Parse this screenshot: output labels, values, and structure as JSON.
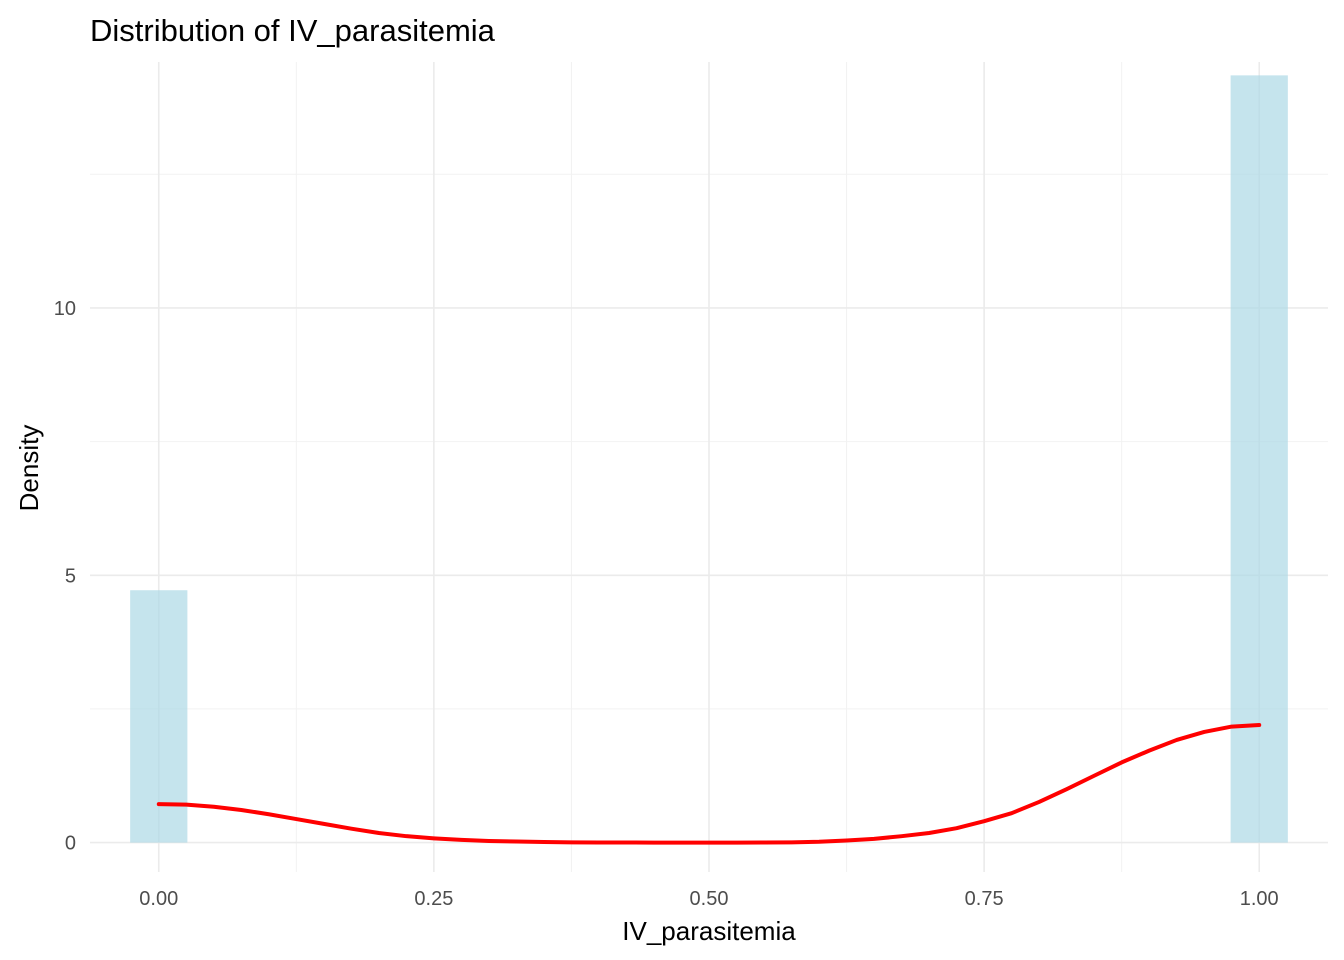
{
  "chart_data": {
    "type": "bar",
    "title": "Distribution of IV_parasitemia",
    "xlabel": "IV_parasitemia",
    "ylabel": "Density",
    "xlim": [
      -0.0625,
      1.0625
    ],
    "ylim": [
      -0.55,
      14.6
    ],
    "x_ticks": [
      0.0,
      0.25,
      0.5,
      0.75,
      1.0
    ],
    "x_tick_labels": [
      "0.00",
      "0.25",
      "0.50",
      "0.75",
      "1.00"
    ],
    "y_ticks": [
      0,
      5,
      10
    ],
    "y_tick_labels": [
      "0",
      "5",
      "10"
    ],
    "grid": true,
    "legend": "none",
    "histogram": {
      "name": "",
      "bin_width": 0.052,
      "bars": [
        {
          "x": 0.0,
          "y": 4.72
        },
        {
          "x": 1.0,
          "y": 14.35
        }
      ],
      "color": "#add8e6"
    },
    "density": {
      "name": "",
      "color": "#ff0000",
      "x": [
        0.0,
        0.025,
        0.05,
        0.075,
        0.1,
        0.125,
        0.15,
        0.175,
        0.2,
        0.225,
        0.25,
        0.275,
        0.3,
        0.325,
        0.35,
        0.375,
        0.4,
        0.425,
        0.45,
        0.475,
        0.5,
        0.525,
        0.55,
        0.575,
        0.6,
        0.625,
        0.65,
        0.675,
        0.7,
        0.725,
        0.75,
        0.775,
        0.8,
        0.825,
        0.85,
        0.875,
        0.9,
        0.925,
        0.95,
        0.975,
        1.0
      ],
      "y": [
        0.72,
        0.71,
        0.67,
        0.61,
        0.53,
        0.44,
        0.35,
        0.26,
        0.18,
        0.12,
        0.08,
        0.05,
        0.03,
        0.02,
        0.01,
        0.005,
        0.002,
        0.001,
        0.0,
        0.0,
        0.0,
        0.0,
        0.002,
        0.005,
        0.015,
        0.04,
        0.07,
        0.12,
        0.18,
        0.27,
        0.4,
        0.55,
        0.76,
        1.0,
        1.25,
        1.5,
        1.72,
        1.92,
        2.07,
        2.17,
        2.2
      ]
    }
  }
}
